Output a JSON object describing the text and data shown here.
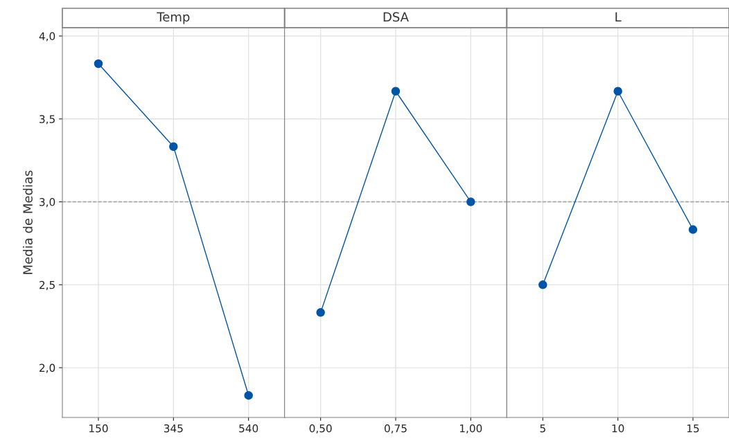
{
  "chart_data": [
    {
      "type": "line",
      "title": "Temp",
      "ylabel": "Media de Medias",
      "categories": [
        "150",
        "345",
        "540"
      ],
      "series": [
        {
          "color": "#0054a6",
          "values": [
            3.833,
            3.333,
            1.833
          ]
        }
      ],
      "marker": "circle",
      "line_style": "solid",
      "grid": true,
      "ylim": [
        1.7,
        4.05
      ],
      "yticks": [
        {
          "value": 2.0,
          "label": "2,0"
        },
        {
          "value": 2.5,
          "label": "2,5"
        },
        {
          "value": 3.0,
          "label": "3,0"
        },
        {
          "value": 3.5,
          "label": "3,5"
        },
        {
          "value": 4.0,
          "label": "4,0"
        }
      ],
      "ref_lines": [
        {
          "axis": "y",
          "value": 3.0,
          "color": "#a0a0a0",
          "line_style": "dashed"
        }
      ]
    },
    {
      "type": "line",
      "title": "DSA",
      "categories": [
        "0,50",
        "0,75",
        "1,00"
      ],
      "series": [
        {
          "color": "#0054a6",
          "values": [
            2.333,
            3.667,
            3.0
          ]
        }
      ],
      "marker": "circle",
      "line_style": "solid",
      "grid": true,
      "tick_labels": "x",
      "ylim": [
        1.7,
        4.05
      ],
      "yticks": [
        2.0,
        2.5,
        3.0,
        3.5,
        4.0
      ],
      "ref_lines": [
        {
          "axis": "y",
          "value": 3.0,
          "color": "#a0a0a0",
          "line_style": "dashed"
        }
      ]
    },
    {
      "type": "line",
      "title": "L",
      "categories": [
        "5",
        "10",
        "15"
      ],
      "series": [
        {
          "color": "#0054a6",
          "values": [
            2.5,
            3.667,
            2.833
          ]
        }
      ],
      "marker": "circle",
      "line_style": "solid",
      "grid": true,
      "tick_labels": "x",
      "ylim": [
        1.7,
        4.05
      ],
      "yticks": [
        2.0,
        2.5,
        3.0,
        3.5,
        4.0
      ],
      "ref_lines": [
        {
          "axis": "y",
          "value": 3.0,
          "color": "#a0a0a0",
          "line_style": "dashed"
        }
      ]
    }
  ]
}
